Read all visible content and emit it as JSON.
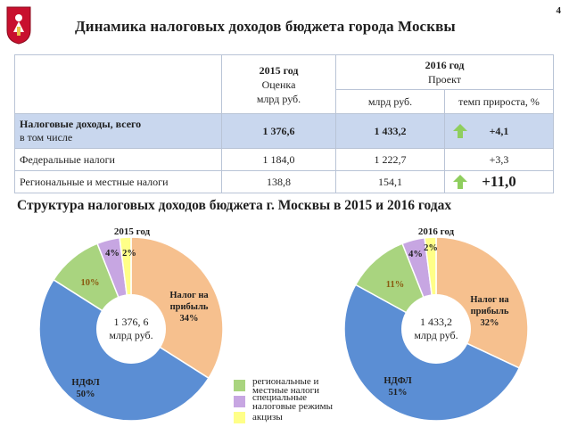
{
  "header": {
    "title": "Динамика налоговых доходов бюджета города Москвы",
    "page_number": "4"
  },
  "table": {
    "col2015": {
      "year": "2015 год",
      "status": "Оценка",
      "unit": "млрд руб."
    },
    "col2016": {
      "year": "2016 год",
      "status": "Проект",
      "unit": "млрд руб.",
      "growth": "темп прироста, %"
    },
    "rows": [
      {
        "name1": "Налоговые доходы, всего",
        "name2": "в том числе",
        "v2015": "1 376,6",
        "v2016": "1 433,2",
        "growth": "+4,1"
      },
      {
        "name": "Федеральные налоги",
        "v2015": "1 184,0",
        "v2016": "1 222,7",
        "growth": "+3,3"
      },
      {
        "name": "Региональные и местные налоги",
        "v2015": "138,8",
        "v2016": "154,1",
        "growth": "+11,0"
      }
    ]
  },
  "section": {
    "subtitle": "Структура налоговых доходов бюджета г. Москвы в 2015 и 2016 годах"
  },
  "legend": {
    "regional_line1": "региональные и",
    "regional_line2": "местные налоги",
    "special_line1": "специальные",
    "special_line2": "налоговые режимы",
    "excise": "акцизы"
  },
  "colors": {
    "profit": "#f6c08e",
    "ndfl": "#5b8ed4",
    "regional": "#a9d47f",
    "special": "#c7a6e2",
    "excise": "#ffff88",
    "arrow": "#8fce5e",
    "header_row": "#c9d7ee"
  },
  "chart_data": [
    {
      "type": "pie",
      "title": "2015 год",
      "center_label": [
        "1 376, 6",
        "млрд руб."
      ],
      "slices": [
        {
          "name": "Налог на прибыль",
          "value": 34,
          "label_lines": [
            "Налог на",
            "прибыль",
            "34%"
          ]
        },
        {
          "name": "НДФЛ",
          "value": 50,
          "label_lines": [
            "НДФЛ",
            "50%"
          ]
        },
        {
          "name": "региональные и местные налоги",
          "value": 10,
          "label_lines": [
            "10%"
          ]
        },
        {
          "name": "специальные налоговые режимы",
          "value": 4,
          "label_lines": [
            "4%"
          ]
        },
        {
          "name": "акцизы",
          "value": 2,
          "label_lines": [
            "2%"
          ]
        }
      ]
    },
    {
      "type": "pie",
      "title": "2016 год",
      "center_label": [
        "1 433,2",
        "млрд руб."
      ],
      "slices": [
        {
          "name": "Налог на прибыль",
          "value": 32,
          "label_lines": [
            "Налог на",
            "прибыль",
            "32%"
          ]
        },
        {
          "name": "НДФЛ",
          "value": 51,
          "label_lines": [
            "НДФЛ",
            "51%"
          ]
        },
        {
          "name": "региональные и местные налоги",
          "value": 11,
          "label_lines": [
            "11%"
          ]
        },
        {
          "name": "специальные налоговые режимы",
          "value": 4,
          "label_lines": [
            "4%"
          ]
        },
        {
          "name": "акцизы",
          "value": 2,
          "label_lines": [
            "2%"
          ]
        }
      ]
    }
  ]
}
